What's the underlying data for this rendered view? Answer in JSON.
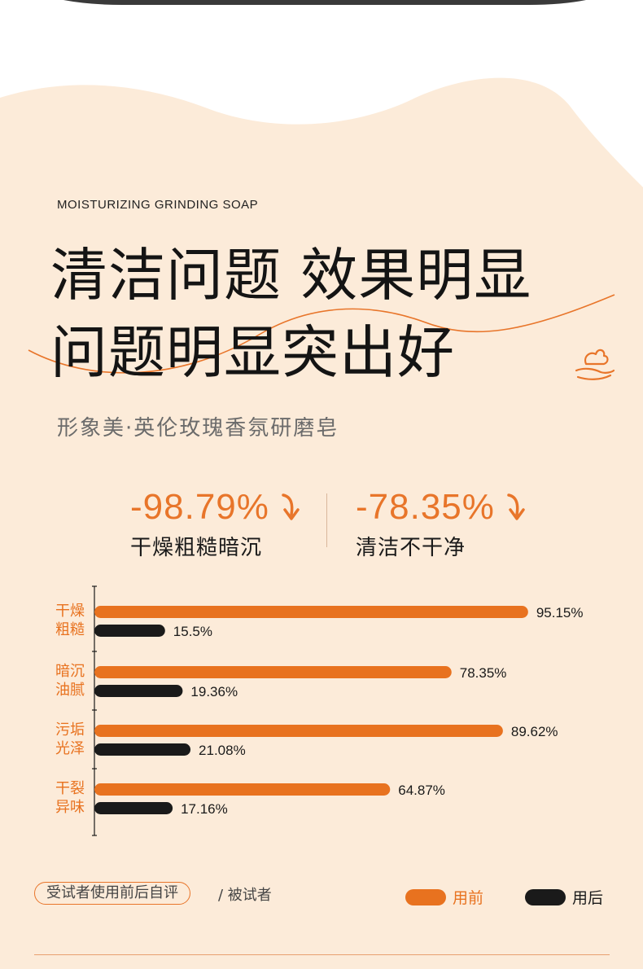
{
  "header": {
    "eyebrow": "MOISTURIZING GRINDING SOAP",
    "headline_line1": "清洁问题 效果明显",
    "headline_line2": "问题明显突出好",
    "subtitle": "形象美·英伦玫瑰香氛研磨皂"
  },
  "stats": [
    {
      "value": "-98.79%",
      "label": "干燥粗糙暗沉"
    },
    {
      "value": "-78.35%",
      "label": "清洁不干净"
    }
  ],
  "colors": {
    "background_cream": "#fcebd9",
    "accent_orange": "#e8721f",
    "after_black": "#1a1a1a"
  },
  "icons": {
    "stat_arrow": "arrow-down-curve-icon",
    "hand_foam": "hand-foam-icon"
  },
  "chart_data": {
    "type": "bar",
    "orientation": "horizontal",
    "categories": [
      [
        "干燥",
        "粗糙"
      ],
      [
        "暗沉",
        "油腻"
      ],
      [
        "污垢",
        "光泽"
      ],
      [
        "干裂",
        "异味"
      ]
    ],
    "series": [
      {
        "name": "用前",
        "values": [
          95.15,
          78.35,
          89.62,
          64.87
        ],
        "labels": [
          "95.15%",
          "78.35%",
          "89.62%",
          "64.87%"
        ],
        "color": "#e8721f"
      },
      {
        "name": "用后",
        "values": [
          15.5,
          19.36,
          21.08,
          17.16
        ],
        "labels": [
          "15.5%",
          "19.36%",
          "21.08%",
          "17.16%"
        ],
        "color": "#1a1a1a"
      }
    ],
    "xlim": [
      0,
      100
    ],
    "grid": false,
    "legend": "bottom"
  },
  "footer": {
    "pill_text": "受试者使用前后自评",
    "note": "/ 被试者",
    "legend_before": "用前",
    "legend_after": "用后"
  }
}
